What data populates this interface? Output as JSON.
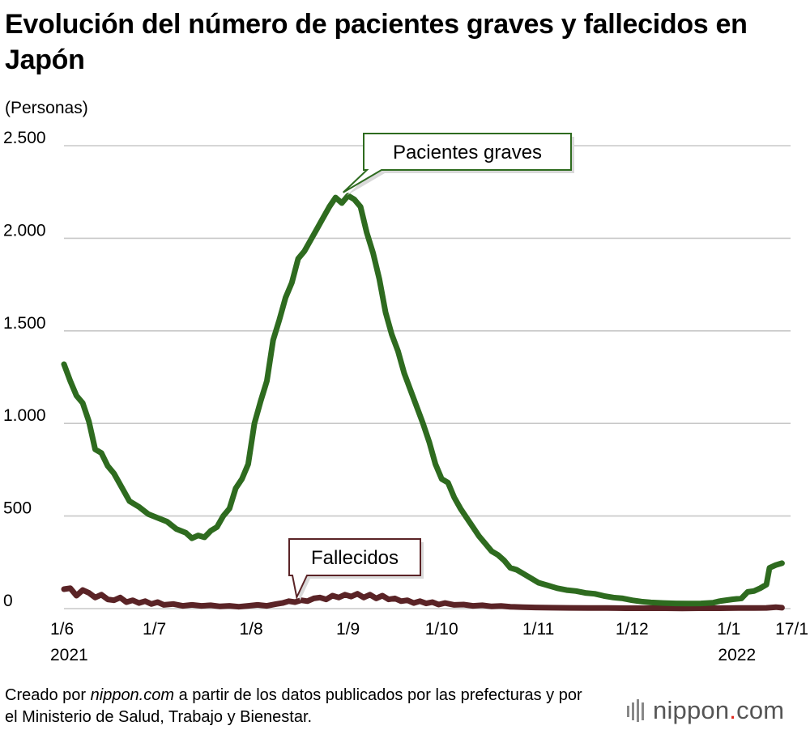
{
  "title": "Evolución del número de pacientes graves y fallecidos en Japón",
  "unit_label": "(Personas)",
  "footer": {
    "prefix": "Creado por ",
    "site": "nippon.com",
    "suffix": " a partir de los datos publicados por las prefecturas y por el Ministerio de Salud, Trabajo y Bienestar."
  },
  "logo": {
    "main": "nippon",
    "dot": ".",
    "tld": "com"
  },
  "chart_data": {
    "type": "line",
    "ylabel": "(Personas)",
    "ylim": [
      0,
      2500
    ],
    "yticks": [
      0,
      500,
      1000,
      1500,
      2000,
      2500
    ],
    "ytick_labels": [
      "0",
      "500",
      "1.000",
      "1.500",
      "2.000",
      "2.500"
    ],
    "xlim": [
      "2021-06-01",
      "2022-01-20"
    ],
    "xticks": [
      {
        "date": "2021-06-01",
        "label": "1/6",
        "year": "2021"
      },
      {
        "date": "2021-07-01",
        "label": "1/7",
        "year": ""
      },
      {
        "date": "2021-08-01",
        "label": "1/8",
        "year": ""
      },
      {
        "date": "2021-09-01",
        "label": "1/9",
        "year": ""
      },
      {
        "date": "2021-10-01",
        "label": "1/10",
        "year": ""
      },
      {
        "date": "2021-11-01",
        "label": "1/11",
        "year": ""
      },
      {
        "date": "2021-12-01",
        "label": "1/12",
        "year": ""
      },
      {
        "date": "2022-01-01",
        "label": "1/1",
        "year": "2022"
      },
      {
        "date": "2022-01-17",
        "label": "17/1",
        "year": ""
      }
    ],
    "grid": true,
    "series": [
      {
        "name": "Pacientes graves",
        "color": "#2e6b1f",
        "points": [
          [
            "2021-06-01",
            1320
          ],
          [
            "2021-06-03",
            1230
          ],
          [
            "2021-06-05",
            1150
          ],
          [
            "2021-06-07",
            1110
          ],
          [
            "2021-06-09",
            1010
          ],
          [
            "2021-06-11",
            860
          ],
          [
            "2021-06-13",
            840
          ],
          [
            "2021-06-15",
            770
          ],
          [
            "2021-06-17",
            730
          ],
          [
            "2021-06-20",
            640
          ],
          [
            "2021-06-22",
            580
          ],
          [
            "2021-06-25",
            550
          ],
          [
            "2021-06-28",
            510
          ],
          [
            "2021-07-01",
            490
          ],
          [
            "2021-07-04",
            470
          ],
          [
            "2021-07-07",
            430
          ],
          [
            "2021-07-10",
            410
          ],
          [
            "2021-07-12",
            380
          ],
          [
            "2021-07-14",
            395
          ],
          [
            "2021-07-16",
            385
          ],
          [
            "2021-07-18",
            420
          ],
          [
            "2021-07-20",
            440
          ],
          [
            "2021-07-22",
            500
          ],
          [
            "2021-07-24",
            540
          ],
          [
            "2021-07-26",
            650
          ],
          [
            "2021-07-28",
            700
          ],
          [
            "2021-07-30",
            780
          ],
          [
            "2021-08-01",
            1000
          ],
          [
            "2021-08-03",
            1120
          ],
          [
            "2021-08-05",
            1230
          ],
          [
            "2021-08-07",
            1450
          ],
          [
            "2021-08-09",
            1560
          ],
          [
            "2021-08-11",
            1680
          ],
          [
            "2021-08-13",
            1760
          ],
          [
            "2021-08-15",
            1890
          ],
          [
            "2021-08-17",
            1930
          ],
          [
            "2021-08-19",
            1990
          ],
          [
            "2021-08-21",
            2050
          ],
          [
            "2021-08-23",
            2110
          ],
          [
            "2021-08-25",
            2170
          ],
          [
            "2021-08-27",
            2220
          ],
          [
            "2021-08-29",
            2190
          ],
          [
            "2021-08-31",
            2230
          ],
          [
            "2021-09-02",
            2210
          ],
          [
            "2021-09-04",
            2170
          ],
          [
            "2021-09-06",
            2030
          ],
          [
            "2021-09-08",
            1920
          ],
          [
            "2021-09-10",
            1780
          ],
          [
            "2021-09-12",
            1600
          ],
          [
            "2021-09-14",
            1480
          ],
          [
            "2021-09-16",
            1390
          ],
          [
            "2021-09-18",
            1270
          ],
          [
            "2021-09-20",
            1180
          ],
          [
            "2021-09-22",
            1090
          ],
          [
            "2021-09-24",
            1000
          ],
          [
            "2021-09-26",
            900
          ],
          [
            "2021-09-28",
            780
          ],
          [
            "2021-09-30",
            700
          ],
          [
            "2021-10-02",
            680
          ],
          [
            "2021-10-04",
            600
          ],
          [
            "2021-10-06",
            540
          ],
          [
            "2021-10-08",
            490
          ],
          [
            "2021-10-10",
            440
          ],
          [
            "2021-10-12",
            390
          ],
          [
            "2021-10-14",
            350
          ],
          [
            "2021-10-16",
            310
          ],
          [
            "2021-10-18",
            290
          ],
          [
            "2021-10-20",
            260
          ],
          [
            "2021-10-22",
            220
          ],
          [
            "2021-10-24",
            210
          ],
          [
            "2021-10-26",
            190
          ],
          [
            "2021-10-28",
            170
          ],
          [
            "2021-10-31",
            140
          ],
          [
            "2021-11-03",
            125
          ],
          [
            "2021-11-06",
            110
          ],
          [
            "2021-11-09",
            100
          ],
          [
            "2021-11-12",
            95
          ],
          [
            "2021-11-15",
            85
          ],
          [
            "2021-11-18",
            80
          ],
          [
            "2021-11-21",
            68
          ],
          [
            "2021-11-24",
            60
          ],
          [
            "2021-11-27",
            55
          ],
          [
            "2021-11-30",
            45
          ],
          [
            "2021-12-03",
            38
          ],
          [
            "2021-12-06",
            33
          ],
          [
            "2021-12-10",
            30
          ],
          [
            "2021-12-14",
            28
          ],
          [
            "2021-12-18",
            27
          ],
          [
            "2021-12-22",
            28
          ],
          [
            "2021-12-26",
            32
          ],
          [
            "2021-12-28",
            40
          ],
          [
            "2022-01-01",
            50
          ],
          [
            "2022-01-04",
            55
          ],
          [
            "2022-01-06",
            90
          ],
          [
            "2022-01-08",
            95
          ],
          [
            "2022-01-10",
            110
          ],
          [
            "2022-01-12",
            130
          ],
          [
            "2022-01-13",
            220
          ],
          [
            "2022-01-15",
            235
          ],
          [
            "2022-01-17",
            245
          ]
        ]
      },
      {
        "name": "Fallecidos",
        "color": "#5a2326",
        "points": [
          [
            "2021-06-01",
            105
          ],
          [
            "2021-06-03",
            110
          ],
          [
            "2021-06-05",
            70
          ],
          [
            "2021-06-07",
            100
          ],
          [
            "2021-06-09",
            85
          ],
          [
            "2021-06-11",
            60
          ],
          [
            "2021-06-13",
            75
          ],
          [
            "2021-06-15",
            50
          ],
          [
            "2021-06-17",
            45
          ],
          [
            "2021-06-19",
            60
          ],
          [
            "2021-06-21",
            35
          ],
          [
            "2021-06-23",
            45
          ],
          [
            "2021-06-25",
            30
          ],
          [
            "2021-06-27",
            40
          ],
          [
            "2021-06-29",
            25
          ],
          [
            "2021-07-01",
            35
          ],
          [
            "2021-07-03",
            20
          ],
          [
            "2021-07-06",
            25
          ],
          [
            "2021-07-09",
            15
          ],
          [
            "2021-07-12",
            20
          ],
          [
            "2021-07-15",
            15
          ],
          [
            "2021-07-18",
            18
          ],
          [
            "2021-07-21",
            12
          ],
          [
            "2021-07-24",
            15
          ],
          [
            "2021-07-27",
            10
          ],
          [
            "2021-07-30",
            15
          ],
          [
            "2021-08-02",
            20
          ],
          [
            "2021-08-05",
            15
          ],
          [
            "2021-08-08",
            25
          ],
          [
            "2021-08-10",
            30
          ],
          [
            "2021-08-12",
            40
          ],
          [
            "2021-08-14",
            35
          ],
          [
            "2021-08-16",
            45
          ],
          [
            "2021-08-18",
            40
          ],
          [
            "2021-08-20",
            55
          ],
          [
            "2021-08-22",
            60
          ],
          [
            "2021-08-24",
            50
          ],
          [
            "2021-08-26",
            70
          ],
          [
            "2021-08-28",
            60
          ],
          [
            "2021-08-30",
            75
          ],
          [
            "2021-09-01",
            65
          ],
          [
            "2021-09-03",
            80
          ],
          [
            "2021-09-05",
            60
          ],
          [
            "2021-09-07",
            75
          ],
          [
            "2021-09-09",
            55
          ],
          [
            "2021-09-11",
            70
          ],
          [
            "2021-09-13",
            50
          ],
          [
            "2021-09-15",
            55
          ],
          [
            "2021-09-17",
            40
          ],
          [
            "2021-09-19",
            45
          ],
          [
            "2021-09-21",
            30
          ],
          [
            "2021-09-23",
            40
          ],
          [
            "2021-09-25",
            28
          ],
          [
            "2021-09-27",
            35
          ],
          [
            "2021-09-29",
            22
          ],
          [
            "2021-10-01",
            30
          ],
          [
            "2021-10-04",
            20
          ],
          [
            "2021-10-07",
            22
          ],
          [
            "2021-10-10",
            15
          ],
          [
            "2021-10-13",
            18
          ],
          [
            "2021-10-16",
            12
          ],
          [
            "2021-10-19",
            14
          ],
          [
            "2021-10-22",
            10
          ],
          [
            "2021-10-26",
            8
          ],
          [
            "2021-10-30",
            6
          ],
          [
            "2021-11-04",
            5
          ],
          [
            "2021-11-10",
            4
          ],
          [
            "2021-11-16",
            3
          ],
          [
            "2021-11-22",
            3
          ],
          [
            "2021-11-28",
            2
          ],
          [
            "2021-12-04",
            2
          ],
          [
            "2021-12-10",
            2
          ],
          [
            "2021-12-16",
            1
          ],
          [
            "2021-12-22",
            2
          ],
          [
            "2021-12-28",
            2
          ],
          [
            "2022-01-03",
            3
          ],
          [
            "2022-01-08",
            3
          ],
          [
            "2022-01-12",
            4
          ],
          [
            "2022-01-15",
            8
          ],
          [
            "2022-01-17",
            5
          ]
        ]
      }
    ],
    "annotations": [
      {
        "text": "Pacientes graves",
        "series": "Pacientes graves",
        "point": [
          "2021-08-31",
          2230
        ]
      },
      {
        "text": "Fallecidos",
        "series": "Fallecidos",
        "point": [
          "2021-08-13",
          35
        ]
      }
    ]
  }
}
